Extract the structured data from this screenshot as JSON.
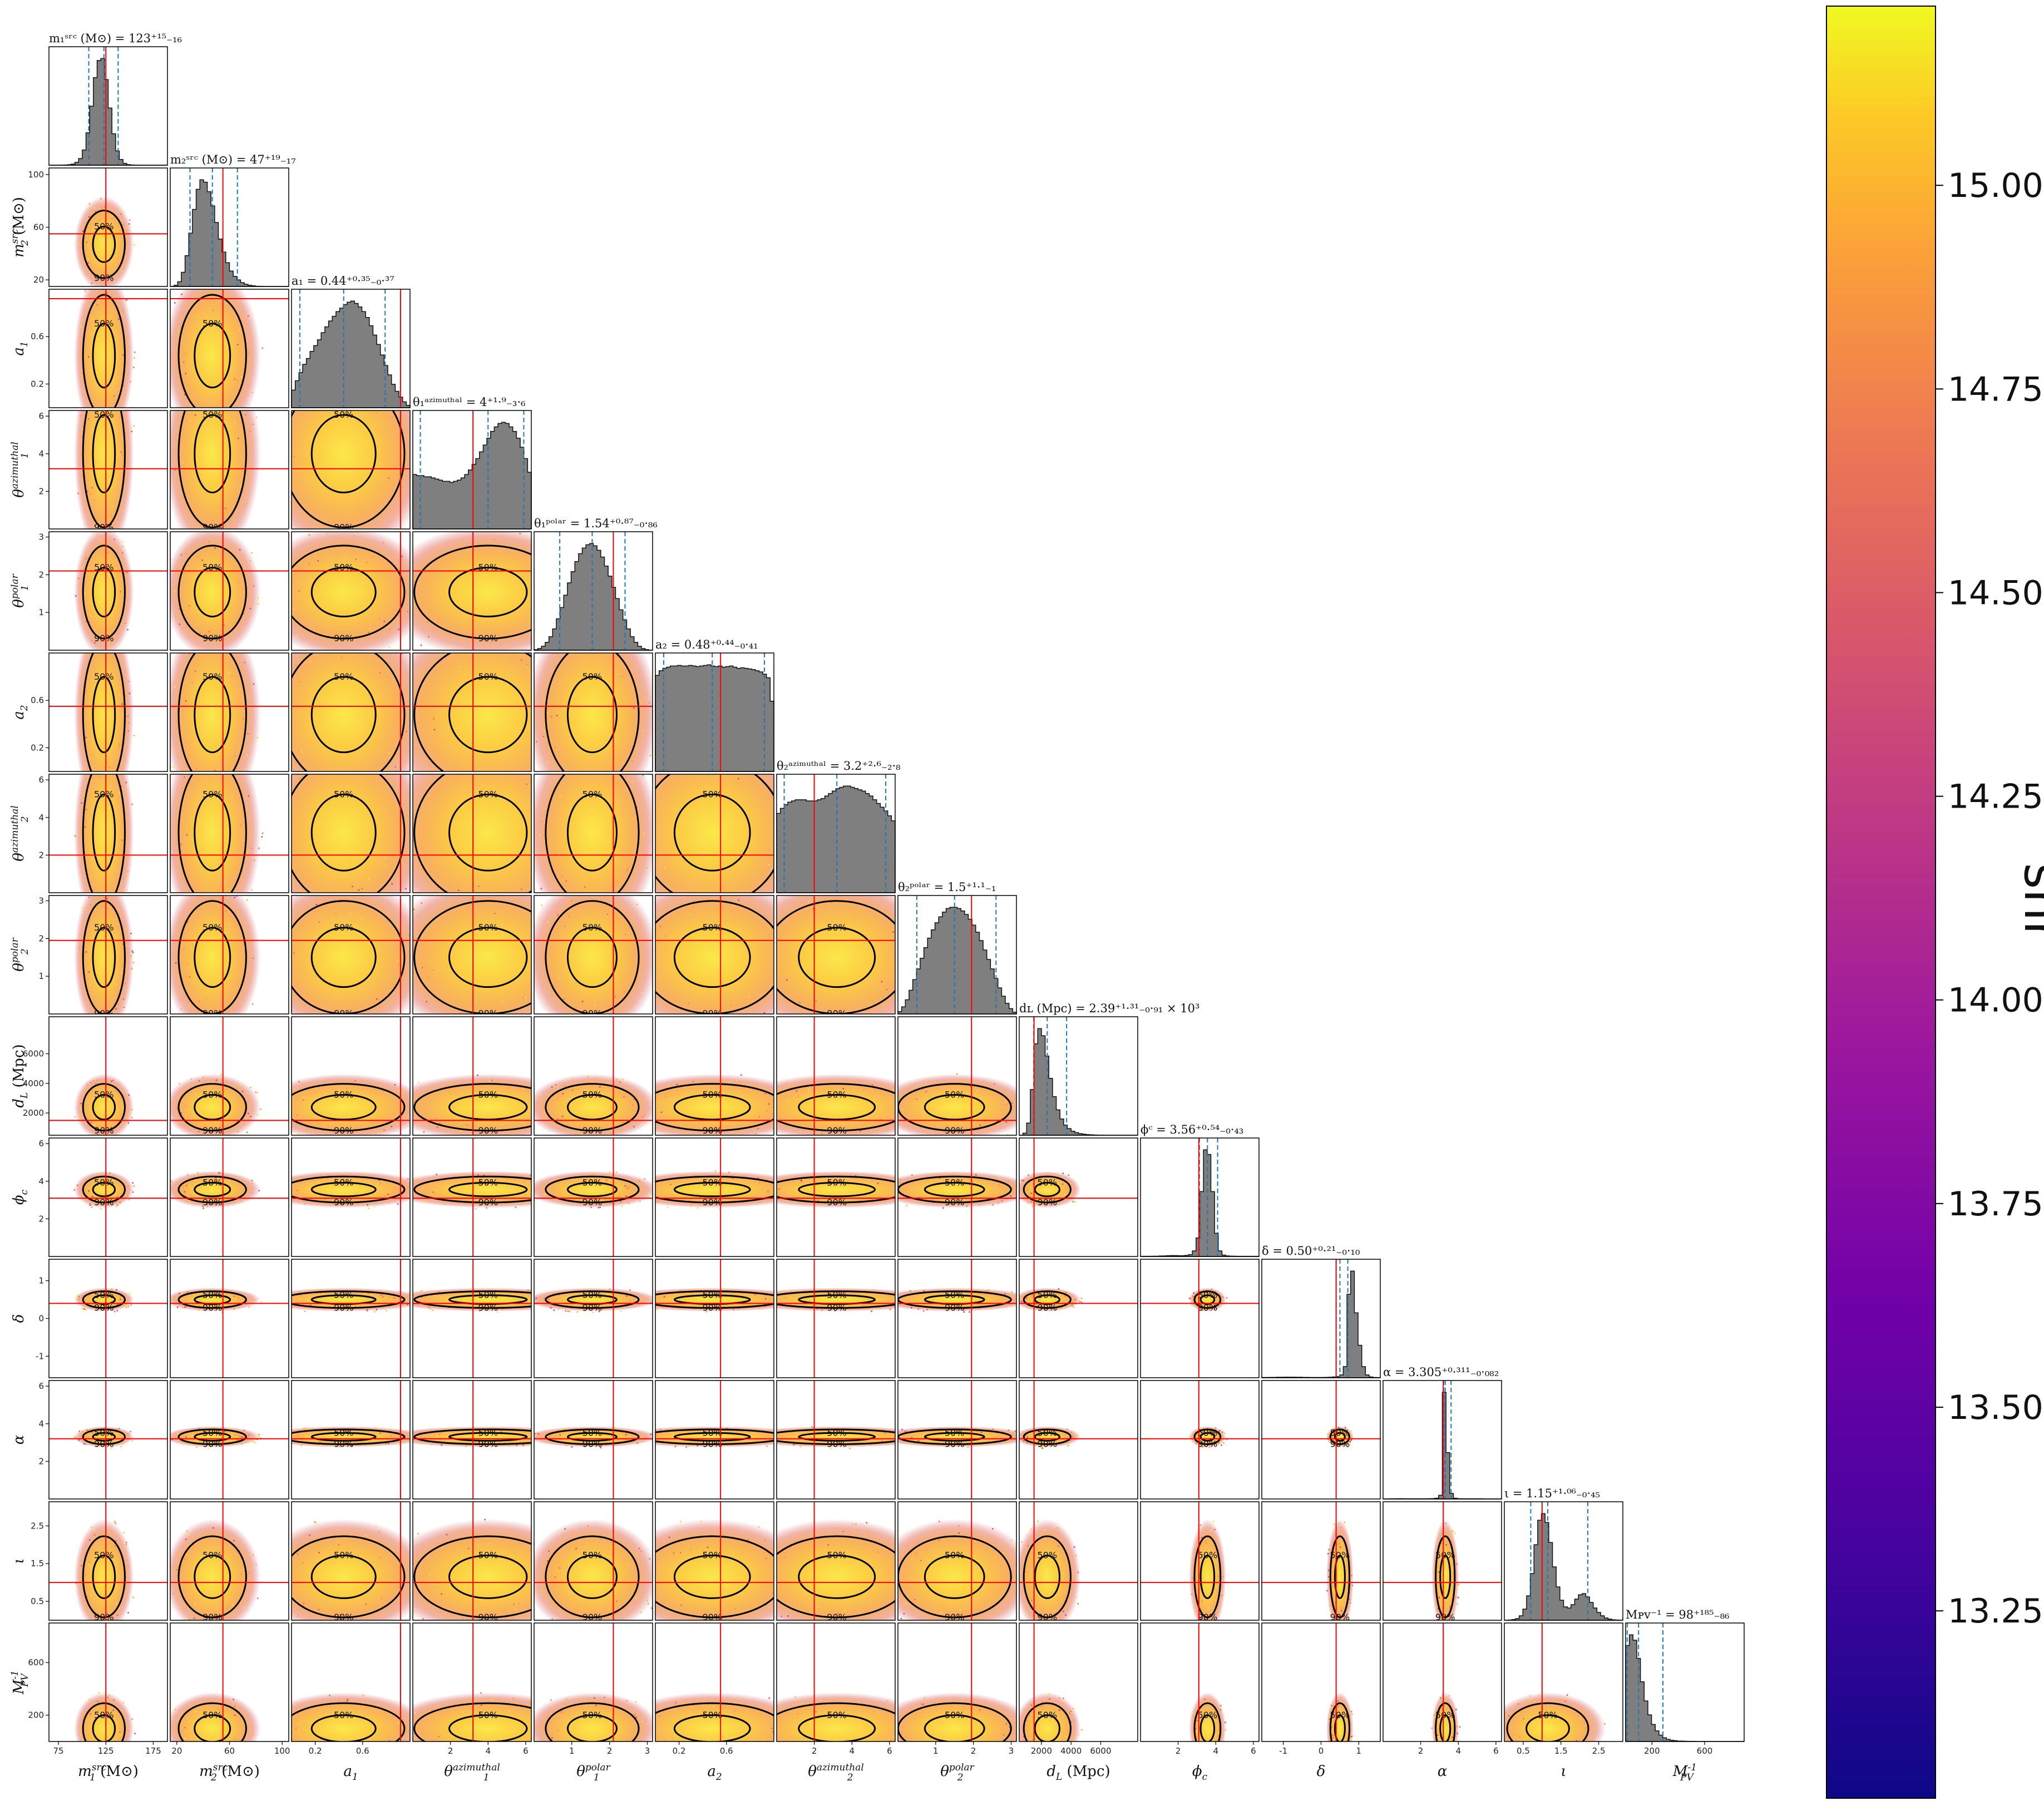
{
  "chart_data": {
    "type": "corner",
    "parameters": [
      {
        "key": "m1",
        "label_main": "m",
        "label_sub": "1",
        "label_sup": "src",
        "unit": " (M⊙)",
        "lo": 65,
        "hi": 190,
        "ticks": [
          "75",
          "125",
          "175"
        ],
        "tickv": [
          75,
          125,
          175
        ],
        "median": 123,
        "minus": 16,
        "plus": 15,
        "truth": 125,
        "title": "m₁ˢʳᶜ (M⊙) = 123⁺¹⁵₋₁₆",
        "hist": [
          0,
          0,
          0,
          1,
          2,
          5,
          12,
          30,
          70,
          160,
          340,
          620,
          920,
          1100,
          1120,
          900,
          600,
          330,
          150,
          60,
          20,
          6,
          2,
          1,
          0,
          0,
          0,
          0,
          0,
          0,
          0,
          0
        ]
      },
      {
        "key": "m2",
        "label_main": "m",
        "label_sub": "2",
        "label_sup": "src",
        "unit": " (M⊙)",
        "lo": 15,
        "hi": 105,
        "ticks": [
          "20",
          "60",
          "100"
        ],
        "tickv": [
          20,
          60,
          100
        ],
        "median": 47,
        "minus": 17,
        "plus": 19,
        "truth": 55,
        "title": "m₂ˢʳᶜ (M⊙) = 47⁺¹⁹₋₁₇",
        "hist": [
          0,
          10,
          40,
          120,
          260,
          450,
          650,
          820,
          900,
          880,
          800,
          680,
          540,
          400,
          290,
          200,
          130,
          85,
          55,
          32,
          18,
          10,
          5,
          2,
          1,
          0,
          0,
          0,
          0,
          0,
          0,
          0
        ]
      },
      {
        "key": "a1",
        "label_main": "a",
        "label_sub": "1",
        "label_sup": "",
        "unit": "",
        "lo": 0,
        "hi": 1,
        "ticks": [
          "0.2",
          "0.6"
        ],
        "tickv": [
          0.2,
          0.6
        ],
        "median": 0.44,
        "minus": 0.37,
        "plus": 0.35,
        "truth": 0.92,
        "title": "a₁ = 0.44⁺⁰·³⁵₋₀·³⁷",
        "hist": [
          150,
          230,
          300,
          370,
          420,
          480,
          530,
          580,
          640,
          690,
          740,
          780,
          820,
          850,
          880,
          900,
          910,
          890,
          860,
          820,
          770,
          700,
          620,
          540,
          450,
          360,
          280,
          200,
          140,
          90,
          50,
          20
        ]
      },
      {
        "key": "t1a",
        "label_main": "θ",
        "label_sub": "1",
        "label_sup": "azimuthal",
        "unit": "",
        "lo": 0,
        "hi": 6.3,
        "ticks": [
          "2",
          "4",
          "6"
        ],
        "tickv": [
          2,
          4,
          6
        ],
        "median": 4,
        "minus": 3.6,
        "plus": 1.9,
        "truth": 3.2,
        "title": "θ₁ᵃᶻⁱᵐᵘᵗʰᵃˡ = 4⁺¹·⁹₋₃·₆",
        "hist": [
          480,
          470,
          470,
          460,
          460,
          450,
          440,
          430,
          420,
          420,
          410,
          420,
          430,
          450,
          480,
          520,
          570,
          620,
          680,
          740,
          800,
          860,
          900,
          930,
          940,
          930,
          900,
          860,
          800,
          720,
          620,
          500
        ]
      },
      {
        "key": "t1p",
        "label_main": "θ",
        "label_sub": "1",
        "label_sup": "polar",
        "unit": "",
        "lo": 0,
        "hi": 3.14,
        "ticks": [
          "1",
          "2",
          "3"
        ],
        "tickv": [
          1,
          2,
          3
        ],
        "median": 1.54,
        "minus": 0.86,
        "plus": 0.87,
        "truth": 2.1,
        "title": "θ₁ᵖᵒˡᵃʳ = 1.54⁺⁰·⁸⁷₋₀·₈₆",
        "hist": [
          5,
          15,
          35,
          70,
          120,
          190,
          280,
          380,
          490,
          600,
          700,
          790,
          860,
          910,
          940,
          950,
          930,
          890,
          830,
          750,
          660,
          560,
          460,
          360,
          270,
          190,
          120,
          70,
          35,
          15,
          5,
          0
        ]
      },
      {
        "key": "a2",
        "label_main": "a",
        "label_sub": "2",
        "label_sup": "",
        "unit": "",
        "lo": 0,
        "hi": 1,
        "ticks": [
          "0.2",
          "0.6"
        ],
        "tickv": [
          0.2,
          0.6
        ],
        "median": 0.48,
        "minus": 0.41,
        "plus": 0.44,
        "truth": 0.55,
        "title": "a₂ = 0.48⁺⁰·⁴⁴₋₀·₄₁",
        "hist": [
          820,
          860,
          880,
          890,
          900,
          900,
          905,
          900,
          900,
          905,
          900,
          895,
          900,
          905,
          910,
          900,
          895,
          900,
          890,
          895,
          900,
          890,
          880,
          885,
          880,
          875,
          870,
          860,
          850,
          830,
          800,
          600
        ]
      },
      {
        "key": "t2a",
        "label_main": "θ",
        "label_sub": "2",
        "label_sup": "azimuthal",
        "unit": "",
        "lo": 0,
        "hi": 6.3,
        "ticks": [
          "2",
          "4",
          "6"
        ],
        "tickv": [
          2,
          4,
          6
        ],
        "median": 3.2,
        "minus": 2.8,
        "plus": 2.6,
        "truth": 2.0,
        "title": "θ₂ᵃᶻⁱᵐᵘᵗʰᵃˡ = 3.2⁺²·⁶₋₂·₈",
        "hist": [
          640,
          680,
          710,
          730,
          740,
          750,
          750,
          750,
          740,
          740,
          740,
          750,
          760,
          780,
          800,
          820,
          840,
          850,
          860,
          860,
          850,
          840,
          830,
          820,
          800,
          780,
          750,
          720,
          690,
          660,
          620,
          580
        ]
      },
      {
        "key": "t2p",
        "label_main": "θ",
        "label_sub": "2",
        "label_sup": "polar",
        "unit": "",
        "lo": 0,
        "hi": 3.14,
        "ticks": [
          "1",
          "2",
          "3"
        ],
        "tickv": [
          1,
          2,
          3
        ],
        "median": 1.5,
        "minus": 1,
        "plus": 1.1,
        "truth": 1.95,
        "title": "θ₂ᵖᵒˡᵃʳ = 1.5⁺¹·¹₋₁",
        "hist": [
          20,
          60,
          120,
          200,
          290,
          380,
          470,
          560,
          640,
          710,
          770,
          820,
          860,
          890,
          900,
          900,
          890,
          870,
          840,
          800,
          750,
          690,
          620,
          540,
          460,
          380,
          300,
          220,
          150,
          90,
          45,
          15
        ]
      },
      {
        "key": "dl",
        "label_main": "d",
        "label_sub": "L",
        "label_sup": "",
        "unit": " (Mpc)",
        "lo": 500,
        "hi": 8500,
        "ticks": [
          "2000",
          "4000",
          "6000"
        ],
        "tickv": [
          2000,
          4000,
          6000
        ],
        "median": 2390,
        "minus": 910,
        "plus": 1310,
        "truth": 1500,
        "title": "dʟ (Mpc) = 2.39⁺¹·³¹₋₀·₉₁ × 10³",
        "hist": [
          0,
          20,
          120,
          450,
          900,
          1050,
          980,
          780,
          560,
          380,
          250,
          160,
          100,
          65,
          40,
          25,
          16,
          10,
          6,
          4,
          2,
          1,
          1,
          0,
          0,
          0,
          0,
          0,
          0,
          0,
          0,
          0
        ]
      },
      {
        "key": "phic",
        "label_main": "ϕ",
        "label_sub": "c",
        "label_sup": "",
        "unit": "",
        "lo": 0,
        "hi": 6.3,
        "ticks": [
          "2",
          "4",
          "6"
        ],
        "tickv": [
          2,
          4,
          6
        ],
        "median": 3.56,
        "minus": 0.43,
        "plus": 0.54,
        "truth": 3.1,
        "title": "ϕᶜ = 3.56⁺⁰·⁵⁴₋₀·₄₃",
        "hist": [
          2,
          2,
          2,
          3,
          3,
          5,
          6,
          8,
          10,
          10,
          8,
          8,
          12,
          20,
          60,
          200,
          700,
          1150,
          1100,
          700,
          250,
          60,
          15,
          6,
          4,
          3,
          2,
          2,
          2,
          2,
          2,
          2
        ]
      },
      {
        "key": "delta",
        "label_main": "δ",
        "label_sub": "",
        "label_sup": "",
        "unit": "",
        "lo": -1.57,
        "hi": 1.57,
        "ticks": [
          "-1",
          "0",
          "1"
        ],
        "tickv": [
          -1,
          0,
          1
        ],
        "median": 0.5,
        "minus": 0.1,
        "plus": 0.21,
        "truth": 0.4,
        "title": "δ = 0.50⁺⁰·²¹₋₀·₁₀",
        "hist": [
          3,
          3,
          4,
          4,
          5,
          5,
          6,
          6,
          6,
          5,
          5,
          4,
          4,
          3,
          3,
          3,
          3,
          4,
          5,
          8,
          12,
          30,
          120,
          900,
          1150,
          700,
          350,
          120,
          30,
          8,
          3,
          1
        ]
      },
      {
        "key": "alpha",
        "label_main": "α",
        "label_sub": "",
        "label_sup": "",
        "unit": "",
        "lo": 0,
        "hi": 6.3,
        "ticks": [
          "2",
          "4",
          "6"
        ],
        "tickv": [
          2,
          4,
          6
        ],
        "median": 3.305,
        "minus": 0.082,
        "plus": 0.311,
        "truth": 3.2,
        "title": "α = 3.305⁺⁰·³¹¹₋₀·₀₈₂",
        "hist": [
          1,
          1,
          2,
          2,
          3,
          3,
          2,
          2,
          2,
          2,
          2,
          2,
          3,
          4,
          8,
          40,
          1150,
          500,
          60,
          8,
          3,
          2,
          2,
          2,
          2,
          2,
          2,
          1,
          1,
          1,
          1,
          1
        ]
      },
      {
        "key": "iota",
        "label_main": "ι",
        "label_sub": "",
        "label_sup": "",
        "unit": "",
        "lo": 0,
        "hi": 3.14,
        "ticks": [
          "0.5",
          "1.5",
          "2.5"
        ],
        "tickv": [
          0.5,
          1.5,
          2.5
        ],
        "median": 1.15,
        "minus": 0.45,
        "plus": 1.06,
        "truth": 1.0,
        "title": "ι = 1.15⁺¹·⁰⁶₋₀·₄₅",
        "hist": [
          0,
          2,
          6,
          15,
          40,
          100,
          220,
          420,
          680,
          900,
          960,
          880,
          700,
          480,
          300,
          180,
          120,
          110,
          140,
          190,
          230,
          240,
          210,
          160,
          110,
          70,
          40,
          20,
          10,
          4,
          2,
          0
        ]
      },
      {
        "key": "mpv",
        "label_main": "M",
        "label_sub": "PV",
        "label_sup": "-1",
        "unit": "",
        "lo": 0,
        "hi": 900,
        "ticks": [
          "200",
          "600"
        ],
        "tickv": [
          200,
          600
        ],
        "median": 98,
        "minus": 86,
        "plus": 185,
        "truth": null,
        "title": "Mᴘᴠ⁻¹ = 98⁺¹⁸⁵₋₈₆",
        "hist": [
          900,
          1000,
          950,
          780,
          560,
          380,
          250,
          160,
          100,
          60,
          35,
          20,
          12,
          7,
          4,
          3,
          2,
          1,
          1,
          0,
          0,
          0,
          0,
          0,
          0,
          0,
          0,
          0,
          0,
          0,
          0,
          0
        ]
      }
    ],
    "contour_levels": [
      "50%",
      "90%"
    ],
    "colorbar": {
      "label": "snr",
      "min": 13.02,
      "max": 15.22,
      "ticks": [
        "13.25",
        "13.50",
        "13.75",
        "14.00",
        "14.25",
        "14.50",
        "14.75",
        "15.00"
      ],
      "tickv": [
        13.25,
        13.5,
        13.75,
        14.0,
        14.25,
        14.5,
        14.75,
        15.0
      ],
      "colormap": "plasma"
    },
    "colors": {
      "hist": "#7f7f7f",
      "quantile": "#1f77b4",
      "truth": "#ff0000",
      "contour": "#000000"
    }
  }
}
